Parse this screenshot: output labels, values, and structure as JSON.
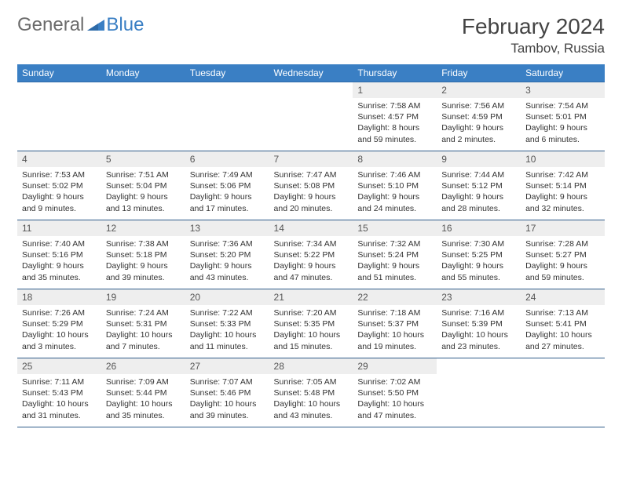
{
  "logo": {
    "general": "General",
    "blue": "Blue"
  },
  "title": "February 2024",
  "location": "Tambov, Russia",
  "colors": {
    "header_bg": "#3a7fc4",
    "header_text": "#ffffff",
    "daynum_bg": "#eeeeee",
    "border": "#305d8a",
    "text": "#333333",
    "logo_gray": "#6b6b6b",
    "logo_blue": "#3a7fc4"
  },
  "weekdays": [
    "Sunday",
    "Monday",
    "Tuesday",
    "Wednesday",
    "Thursday",
    "Friday",
    "Saturday"
  ],
  "weeks": [
    [
      null,
      null,
      null,
      null,
      {
        "n": "1",
        "sr": "Sunrise: 7:58 AM",
        "ss": "Sunset: 4:57 PM",
        "dl": "Daylight: 8 hours and 59 minutes."
      },
      {
        "n": "2",
        "sr": "Sunrise: 7:56 AM",
        "ss": "Sunset: 4:59 PM",
        "dl": "Daylight: 9 hours and 2 minutes."
      },
      {
        "n": "3",
        "sr": "Sunrise: 7:54 AM",
        "ss": "Sunset: 5:01 PM",
        "dl": "Daylight: 9 hours and 6 minutes."
      }
    ],
    [
      {
        "n": "4",
        "sr": "Sunrise: 7:53 AM",
        "ss": "Sunset: 5:02 PM",
        "dl": "Daylight: 9 hours and 9 minutes."
      },
      {
        "n": "5",
        "sr": "Sunrise: 7:51 AM",
        "ss": "Sunset: 5:04 PM",
        "dl": "Daylight: 9 hours and 13 minutes."
      },
      {
        "n": "6",
        "sr": "Sunrise: 7:49 AM",
        "ss": "Sunset: 5:06 PM",
        "dl": "Daylight: 9 hours and 17 minutes."
      },
      {
        "n": "7",
        "sr": "Sunrise: 7:47 AM",
        "ss": "Sunset: 5:08 PM",
        "dl": "Daylight: 9 hours and 20 minutes."
      },
      {
        "n": "8",
        "sr": "Sunrise: 7:46 AM",
        "ss": "Sunset: 5:10 PM",
        "dl": "Daylight: 9 hours and 24 minutes."
      },
      {
        "n": "9",
        "sr": "Sunrise: 7:44 AM",
        "ss": "Sunset: 5:12 PM",
        "dl": "Daylight: 9 hours and 28 minutes."
      },
      {
        "n": "10",
        "sr": "Sunrise: 7:42 AM",
        "ss": "Sunset: 5:14 PM",
        "dl": "Daylight: 9 hours and 32 minutes."
      }
    ],
    [
      {
        "n": "11",
        "sr": "Sunrise: 7:40 AM",
        "ss": "Sunset: 5:16 PM",
        "dl": "Daylight: 9 hours and 35 minutes."
      },
      {
        "n": "12",
        "sr": "Sunrise: 7:38 AM",
        "ss": "Sunset: 5:18 PM",
        "dl": "Daylight: 9 hours and 39 minutes."
      },
      {
        "n": "13",
        "sr": "Sunrise: 7:36 AM",
        "ss": "Sunset: 5:20 PM",
        "dl": "Daylight: 9 hours and 43 minutes."
      },
      {
        "n": "14",
        "sr": "Sunrise: 7:34 AM",
        "ss": "Sunset: 5:22 PM",
        "dl": "Daylight: 9 hours and 47 minutes."
      },
      {
        "n": "15",
        "sr": "Sunrise: 7:32 AM",
        "ss": "Sunset: 5:24 PM",
        "dl": "Daylight: 9 hours and 51 minutes."
      },
      {
        "n": "16",
        "sr": "Sunrise: 7:30 AM",
        "ss": "Sunset: 5:25 PM",
        "dl": "Daylight: 9 hours and 55 minutes."
      },
      {
        "n": "17",
        "sr": "Sunrise: 7:28 AM",
        "ss": "Sunset: 5:27 PM",
        "dl": "Daylight: 9 hours and 59 minutes."
      }
    ],
    [
      {
        "n": "18",
        "sr": "Sunrise: 7:26 AM",
        "ss": "Sunset: 5:29 PM",
        "dl": "Daylight: 10 hours and 3 minutes."
      },
      {
        "n": "19",
        "sr": "Sunrise: 7:24 AM",
        "ss": "Sunset: 5:31 PM",
        "dl": "Daylight: 10 hours and 7 minutes."
      },
      {
        "n": "20",
        "sr": "Sunrise: 7:22 AM",
        "ss": "Sunset: 5:33 PM",
        "dl": "Daylight: 10 hours and 11 minutes."
      },
      {
        "n": "21",
        "sr": "Sunrise: 7:20 AM",
        "ss": "Sunset: 5:35 PM",
        "dl": "Daylight: 10 hours and 15 minutes."
      },
      {
        "n": "22",
        "sr": "Sunrise: 7:18 AM",
        "ss": "Sunset: 5:37 PM",
        "dl": "Daylight: 10 hours and 19 minutes."
      },
      {
        "n": "23",
        "sr": "Sunrise: 7:16 AM",
        "ss": "Sunset: 5:39 PM",
        "dl": "Daylight: 10 hours and 23 minutes."
      },
      {
        "n": "24",
        "sr": "Sunrise: 7:13 AM",
        "ss": "Sunset: 5:41 PM",
        "dl": "Daylight: 10 hours and 27 minutes."
      }
    ],
    [
      {
        "n": "25",
        "sr": "Sunrise: 7:11 AM",
        "ss": "Sunset: 5:43 PM",
        "dl": "Daylight: 10 hours and 31 minutes."
      },
      {
        "n": "26",
        "sr": "Sunrise: 7:09 AM",
        "ss": "Sunset: 5:44 PM",
        "dl": "Daylight: 10 hours and 35 minutes."
      },
      {
        "n": "27",
        "sr": "Sunrise: 7:07 AM",
        "ss": "Sunset: 5:46 PM",
        "dl": "Daylight: 10 hours and 39 minutes."
      },
      {
        "n": "28",
        "sr": "Sunrise: 7:05 AM",
        "ss": "Sunset: 5:48 PM",
        "dl": "Daylight: 10 hours and 43 minutes."
      },
      {
        "n": "29",
        "sr": "Sunrise: 7:02 AM",
        "ss": "Sunset: 5:50 PM",
        "dl": "Daylight: 10 hours and 47 minutes."
      },
      null,
      null
    ]
  ]
}
